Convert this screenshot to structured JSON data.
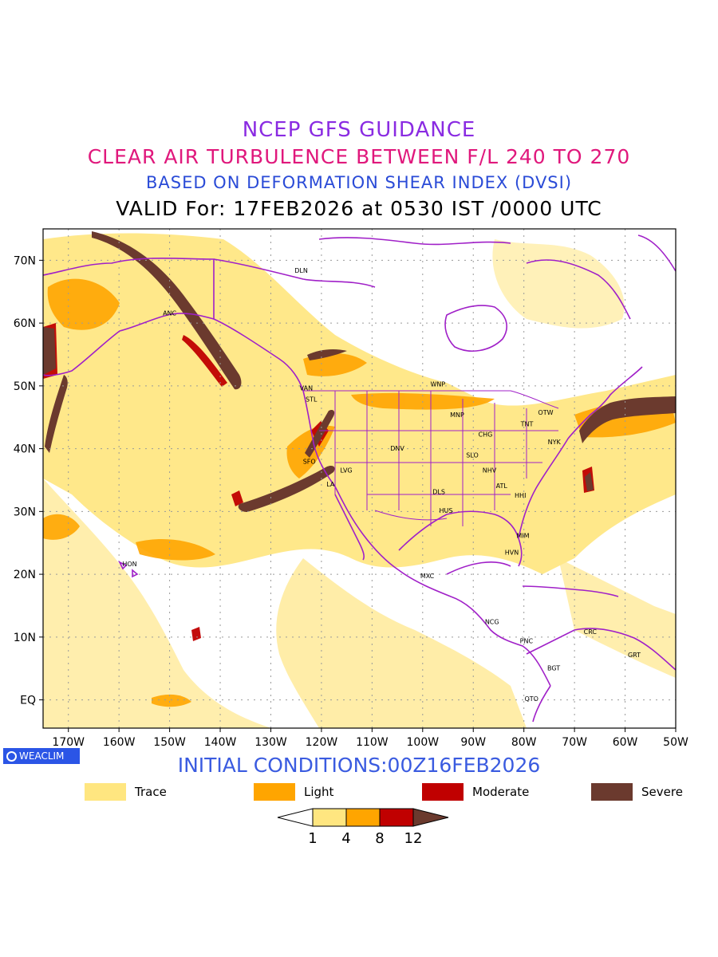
{
  "title": {
    "line1": "NCEP GFS GUIDANCE",
    "line2": "CLEAR AIR TURBULENCE BETWEEN F/L 240 TO 270",
    "line3": "BASED ON DEFORMATION SHEAR INDEX (DVSI)",
    "line4": "VALID For: 17FEB2026 at 0530 IST /0000 UTC"
  },
  "colors": {
    "line1": "#8a2be2",
    "line2": "#e0187c",
    "line3": "#2a4bd7",
    "trace": "#ffe680",
    "light": "#ffa500",
    "moderate": "#c00000",
    "severe": "#6b3a2e",
    "coast": "#a020c8"
  },
  "map": {
    "lon_labels": [
      "170W",
      "160W",
      "150W",
      "140W",
      "130W",
      "120W",
      "110W",
      "100W",
      "90W",
      "80W",
      "70W",
      "60W",
      "50W"
    ],
    "lat_labels": [
      "EQ",
      "10N",
      "20N",
      "30N",
      "40N",
      "50N",
      "60N",
      "70N"
    ],
    "cities": [
      {
        "label": "DLN",
        "lon": -124,
        "lat": 68
      },
      {
        "label": "ANC",
        "lon": -150,
        "lat": 61.2
      },
      {
        "label": "VAN",
        "lon": -123,
        "lat": 49.3
      },
      {
        "label": "STL",
        "lon": -122,
        "lat": 47.5
      },
      {
        "label": "WNP",
        "lon": -97,
        "lat": 49.9
      },
      {
        "label": "OTW",
        "lon": -75.7,
        "lat": 45.4
      },
      {
        "label": "TNT",
        "lon": -79.4,
        "lat": 43.6
      },
      {
        "label": "MNP",
        "lon": -93.2,
        "lat": 45
      },
      {
        "label": "CHG",
        "lon": -87.6,
        "lat": 41.9
      },
      {
        "label": "NYK",
        "lon": -74,
        "lat": 40.7
      },
      {
        "label": "DNV",
        "lon": -105,
        "lat": 39.7
      },
      {
        "label": "SLO",
        "lon": -90.2,
        "lat": 38.6
      },
      {
        "label": "SFO",
        "lon": -122.4,
        "lat": 37.6
      },
      {
        "label": "LVG",
        "lon": -115.1,
        "lat": 36.2
      },
      {
        "label": "NHV",
        "lon": -86.8,
        "lat": 36.2
      },
      {
        "label": "LA",
        "lon": -118.2,
        "lat": 34
      },
      {
        "label": "ATL",
        "lon": -84.4,
        "lat": 33.7
      },
      {
        "label": "DLS",
        "lon": -96.8,
        "lat": 32.8
      },
      {
        "label": "HHI",
        "lon": -80.7,
        "lat": 32.2
      },
      {
        "label": "HUS",
        "lon": -95.4,
        "lat": 29.8
      },
      {
        "label": "MIM",
        "lon": -80.2,
        "lat": 25.8
      },
      {
        "label": "HVN",
        "lon": -82.4,
        "lat": 23.1
      },
      {
        "label": "HON",
        "lon": -157.9,
        "lat": 21.3
      },
      {
        "label": "MXC",
        "lon": -99.1,
        "lat": 19.4
      },
      {
        "label": "NCG",
        "lon": -86.3,
        "lat": 12.1
      },
      {
        "label": "CRC",
        "lon": -66.9,
        "lat": 10.5
      },
      {
        "label": "PNC",
        "lon": -79.5,
        "lat": 9
      },
      {
        "label": "GRT",
        "lon": -58.2,
        "lat": 6.8
      },
      {
        "label": "BGT",
        "lon": -74.1,
        "lat": 4.7
      },
      {
        "label": "QTO",
        "lon": -78.5,
        "lat": -0.2
      }
    ]
  },
  "footer": {
    "logo_text": "WEACLIM",
    "init": "INITIAL CONDITIONS:00Z16FEB2026"
  },
  "legend": {
    "items": [
      {
        "label": "Trace"
      },
      {
        "label": "Light"
      },
      {
        "label": "Moderate"
      },
      {
        "label": "Severe"
      }
    ],
    "ticks": [
      "1",
      "4",
      "8",
      "12"
    ]
  }
}
